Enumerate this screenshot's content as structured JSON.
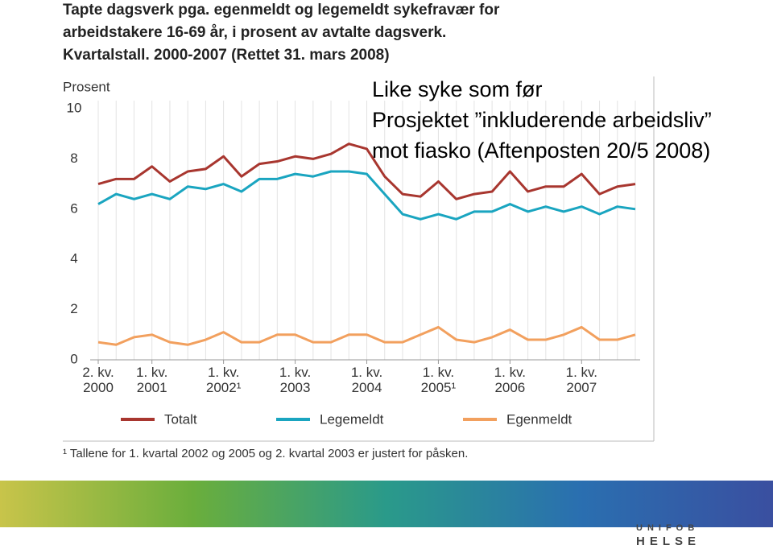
{
  "slide": {
    "heading": [
      "Like syke som før",
      "Prosjektet ”inkluderende arbeidsliv”",
      "mot fiasko (Aftenposten 20/5 2008)"
    ],
    "logo": [
      "UNIFOB",
      "HELSE"
    ]
  },
  "chart_data": {
    "type": "line",
    "title": [
      "Tapte dagsverk pga. egenmeldt og legemeldt sykefravær for",
      "arbeidstakere 16-69 år, i prosent av avtalte dagsverk.",
      "Kvartalstall. 2000-2007 (Rettet 31. mars 2008)"
    ],
    "y_label": "Prosent",
    "categories": [
      "2. kv. 2000",
      null,
      null,
      "1. kv. 2001",
      null,
      null,
      null,
      "1. kv. 2002¹",
      null,
      null,
      null,
      "1. kv. 2003",
      null,
      null,
      null,
      "1. kv. 2004",
      null,
      null,
      null,
      "1. kv. 2005¹",
      null,
      null,
      null,
      "1. kv. 2006",
      null,
      null,
      null,
      "1. kv. 2007",
      null,
      null,
      null
    ],
    "series": [
      {
        "name": "Totalt",
        "color": "#a8362f",
        "values": [
          7.0,
          7.2,
          7.2,
          7.7,
          7.1,
          7.5,
          7.6,
          8.1,
          7.3,
          7.8,
          7.9,
          8.1,
          8.0,
          8.2,
          8.6,
          8.4,
          7.3,
          6.6,
          6.5,
          7.1,
          6.4,
          6.6,
          6.7,
          7.5,
          6.7,
          6.9,
          6.9,
          7.4,
          6.6,
          6.9,
          7.0
        ]
      },
      {
        "name": "Legemeldt",
        "color": "#1aa5c0",
        "values": [
          6.2,
          6.6,
          6.4,
          6.6,
          6.4,
          6.9,
          6.8,
          7.0,
          6.7,
          7.2,
          7.2,
          7.4,
          7.3,
          7.5,
          7.5,
          7.4,
          6.6,
          5.8,
          5.6,
          5.8,
          5.6,
          5.9,
          5.9,
          6.2,
          5.9,
          6.1,
          5.9,
          6.1,
          5.8,
          6.1,
          6.0
        ]
      },
      {
        "name": "Egenmeldt",
        "color": "#f2a05e",
        "values": [
          0.7,
          0.6,
          0.9,
          1.0,
          0.7,
          0.6,
          0.8,
          1.1,
          0.7,
          0.7,
          1.0,
          1.0,
          0.7,
          0.7,
          1.0,
          1.0,
          0.7,
          0.7,
          1.0,
          1.3,
          0.8,
          0.7,
          0.9,
          1.2,
          0.8,
          0.8,
          1.0,
          1.3,
          0.8,
          0.8,
          1.0
        ]
      }
    ],
    "ylim": [
      0,
      10
    ],
    "yticks": [
      0,
      2,
      4,
      6,
      8,
      10
    ],
    "grid": true,
    "legend": "bottom",
    "footnote": "¹ Tallene for 1. kvartal 2002 og 2005 og 2. kvartal 2003 er justert for påsken."
  }
}
